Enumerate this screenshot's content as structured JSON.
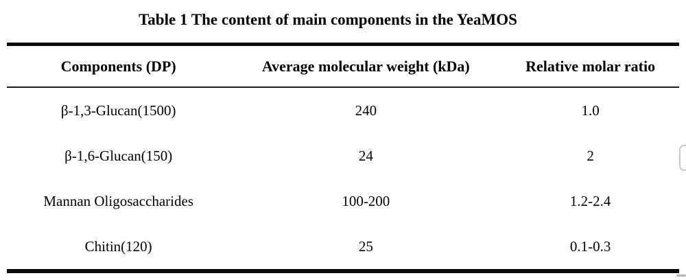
{
  "title": "Table 1 The content of main components in the YeaMOS",
  "table": {
    "columns": [
      "Components (DP)",
      "Average molecular weight (kDa)",
      "Relative molar ratio"
    ],
    "rows": [
      [
        "β-1,3-Glucan(1500)",
        "240",
        "1.0"
      ],
      [
        "β-1,6-Glucan(150)",
        "24",
        "2"
      ],
      [
        "Mannan Oligosaccharides",
        "100-200",
        "1.2-2.4"
      ],
      [
        "Chitin(120)",
        "25",
        "0.1-0.3"
      ]
    ]
  },
  "colors": {
    "text": "#000000",
    "rule": "#0a0a0a",
    "artifact_border": "#c9c9c9",
    "corner_mark": "#b5b5b5"
  }
}
